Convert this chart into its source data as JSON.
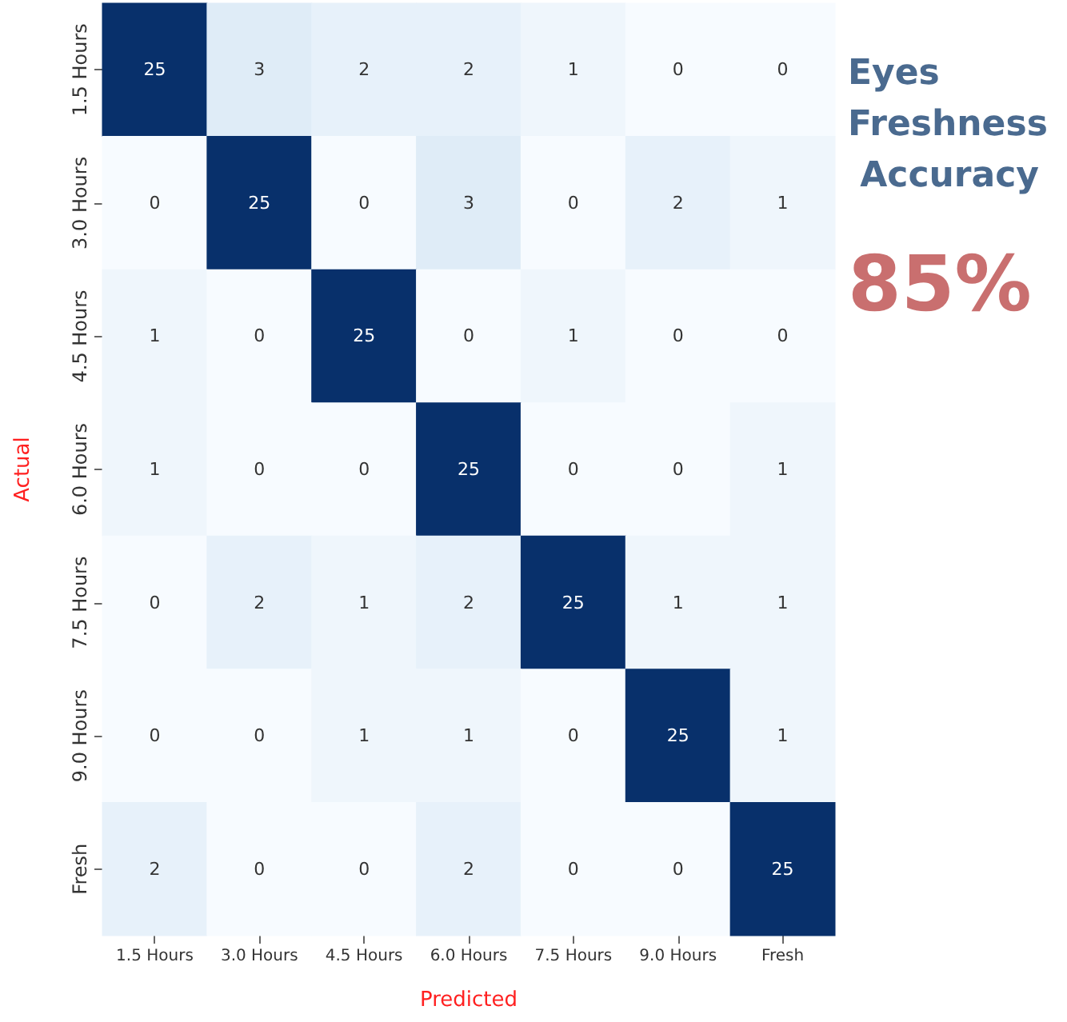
{
  "chart_data": {
    "type": "heatmap",
    "xlabel": "Predicted",
    "ylabel": "Actual",
    "categories": [
      "1.5 Hours",
      "3.0 Hours",
      "4.5 Hours",
      "6.0 Hours",
      "7.5 Hours",
      "9.0 Hours",
      "Fresh"
    ],
    "y_categories": [
      "1.5 Hours",
      "3.0 Hours",
      "4.5 Hours",
      "6.0 Hours",
      "7.5 Hours",
      "9.0 Hours",
      "Fresh"
    ],
    "cells": [
      [
        25,
        3,
        2,
        2,
        1,
        0,
        0
      ],
      [
        0,
        25,
        0,
        3,
        0,
        2,
        1
      ],
      [
        1,
        0,
        25,
        0,
        1,
        0,
        0
      ],
      [
        1,
        0,
        0,
        25,
        0,
        0,
        1
      ],
      [
        0,
        2,
        1,
        2,
        25,
        1,
        1
      ],
      [
        0,
        0,
        1,
        1,
        0,
        25,
        1
      ],
      [
        2,
        0,
        0,
        2,
        0,
        0,
        25
      ]
    ],
    "data_labels": true,
    "annotations": [
      "Eyes Freshness Accuracy",
      "85%"
    ]
  }
}
